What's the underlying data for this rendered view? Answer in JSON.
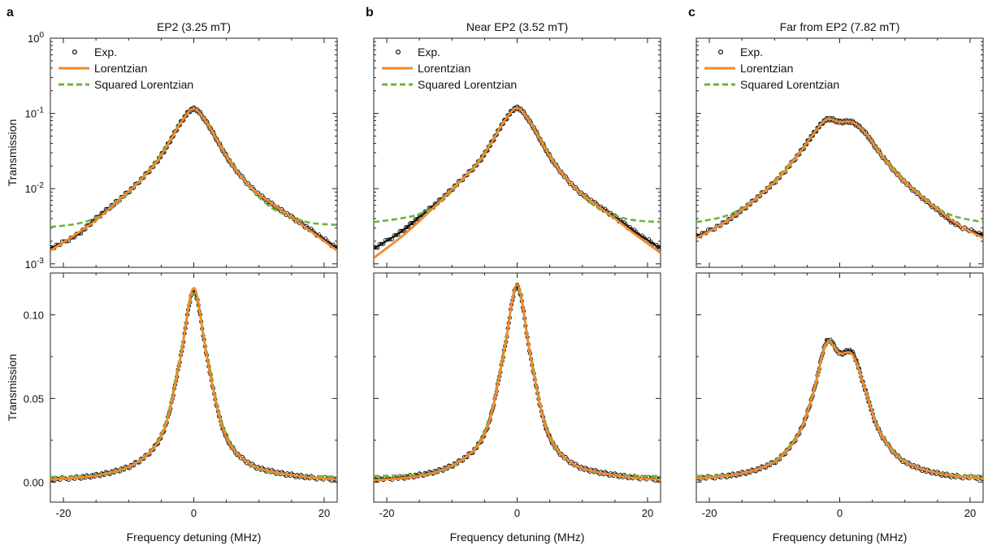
{
  "figure": {
    "colors": {
      "exp": "#111111",
      "lorentzian": "#f4892a",
      "squared": "#6db33f"
    },
    "legend": {
      "exp": "Exp.",
      "lorentzian": "Lorentzian",
      "squared": "Squared Lorentzian"
    }
  },
  "chart_data": [
    {
      "panel_label": "a",
      "title": "EP2 (3.25 mT)",
      "type": "line",
      "yscale": "log",
      "ylabel": "Transmission",
      "xlim": [
        -22,
        22
      ],
      "ylim": [
        0.0009,
        1.0
      ],
      "yticks": [
        "10^0",
        "10^-1",
        "10^-2",
        "10^-3"
      ],
      "legend_position": "top-left",
      "series": [
        {
          "name": "Exp.",
          "style": "scatter",
          "x": [
            -22,
            -18,
            -15,
            -12,
            -9,
            -6,
            -4,
            -2,
            0,
            2,
            4,
            6,
            9,
            12,
            15,
            18,
            22
          ],
          "y": [
            0.0016,
            0.0024,
            0.004,
            0.0065,
            0.011,
            0.021,
            0.038,
            0.075,
            0.115,
            0.075,
            0.038,
            0.02,
            0.01,
            0.0062,
            0.0042,
            0.0028,
            0.0016
          ]
        },
        {
          "name": "Lorentzian",
          "style": "solid",
          "x": [
            -22,
            -18,
            -15,
            -12,
            -9,
            -6,
            -4,
            -2,
            0,
            2,
            4,
            6,
            9,
            12,
            15,
            18,
            22
          ],
          "y": [
            0.0015,
            0.0025,
            0.0038,
            0.0065,
            0.011,
            0.021,
            0.038,
            0.075,
            0.115,
            0.075,
            0.038,
            0.02,
            0.01,
            0.0063,
            0.0042,
            0.0027,
            0.0015
          ]
        },
        {
          "name": "Squared Lorentzian",
          "style": "dashed",
          "x": [
            -22,
            -18,
            -15,
            -12,
            -9,
            -6,
            -4,
            -2,
            0,
            2,
            4,
            6,
            9,
            12,
            15,
            18,
            22
          ],
          "y": [
            0.0031,
            0.0034,
            0.0041,
            0.006,
            0.011,
            0.022,
            0.04,
            0.077,
            0.113,
            0.077,
            0.04,
            0.021,
            0.0095,
            0.0055,
            0.0042,
            0.0035,
            0.0033
          ]
        }
      ]
    },
    {
      "panel_label": "b",
      "title": "Near EP2 (3.52 mT)",
      "type": "line",
      "yscale": "log",
      "ylabel": "",
      "xlim": [
        -22,
        22
      ],
      "ylim": [
        0.0009,
        1.0
      ],
      "legend_position": "top-left",
      "series": [
        {
          "name": "Exp.",
          "style": "scatter",
          "x": [
            -22,
            -18,
            -15,
            -12,
            -9,
            -6,
            -4,
            -2,
            0,
            2,
            4,
            6,
            9,
            12,
            15,
            18,
            22
          ],
          "y": [
            0.0016,
            0.0026,
            0.0042,
            0.0068,
            0.012,
            0.022,
            0.04,
            0.078,
            0.118,
            0.076,
            0.038,
            0.02,
            0.01,
            0.0063,
            0.0042,
            0.0027,
            0.0016
          ]
        },
        {
          "name": "Lorentzian",
          "style": "solid",
          "x": [
            -22,
            -18,
            -15,
            -12,
            -9,
            -6,
            -4,
            -2,
            0,
            2,
            4,
            6,
            9,
            12,
            15,
            18,
            22
          ],
          "y": [
            0.0012,
            0.0022,
            0.0037,
            0.0066,
            0.012,
            0.022,
            0.04,
            0.078,
            0.118,
            0.076,
            0.038,
            0.02,
            0.01,
            0.0062,
            0.004,
            0.0025,
            0.0014
          ]
        },
        {
          "name": "Squared Lorentzian",
          "style": "dashed",
          "x": [
            -22,
            -18,
            -15,
            -12,
            -9,
            -6,
            -4,
            -2,
            0,
            2,
            4,
            6,
            9,
            12,
            15,
            18,
            22
          ],
          "y": [
            0.0036,
            0.004,
            0.0046,
            0.0063,
            0.0115,
            0.023,
            0.042,
            0.08,
            0.116,
            0.078,
            0.04,
            0.021,
            0.0098,
            0.0058,
            0.0044,
            0.0038,
            0.0036
          ]
        }
      ]
    },
    {
      "panel_label": "c",
      "title": "Far from EP2 (7.82 mT)",
      "type": "line",
      "yscale": "log",
      "ylabel": "",
      "xlim": [
        -22,
        22
      ],
      "ylim": [
        0.0009,
        1.0
      ],
      "legend_position": "top-left",
      "series": [
        {
          "name": "Exp.",
          "style": "scatter",
          "x": [
            -22,
            -18,
            -15,
            -12,
            -9,
            -6,
            -4,
            -2,
            0,
            2,
            4,
            6,
            9,
            12,
            15,
            18,
            22
          ],
          "y": [
            0.0023,
            0.0034,
            0.0052,
            0.0085,
            0.015,
            0.031,
            0.054,
            0.083,
            0.077,
            0.076,
            0.054,
            0.031,
            0.015,
            0.0085,
            0.0052,
            0.0033,
            0.0024
          ]
        },
        {
          "name": "Lorentzian",
          "style": "solid",
          "x": [
            -22,
            -18,
            -15,
            -12,
            -9,
            -6,
            -4,
            -2,
            0,
            2,
            4,
            6,
            9,
            12,
            15,
            18,
            22
          ],
          "y": [
            0.0022,
            0.0034,
            0.0052,
            0.0085,
            0.015,
            0.031,
            0.054,
            0.083,
            0.077,
            0.076,
            0.054,
            0.031,
            0.015,
            0.0086,
            0.0053,
            0.0034,
            0.0022
          ]
        },
        {
          "name": "Squared Lorentzian",
          "style": "dashed",
          "x": [
            -22,
            -18,
            -15,
            -12,
            -9,
            -6,
            -4,
            -2,
            0,
            2,
            4,
            6,
            9,
            12,
            15,
            18,
            22
          ],
          "y": [
            0.0036,
            0.0042,
            0.0055,
            0.0087,
            0.016,
            0.032,
            0.055,
            0.084,
            0.077,
            0.076,
            0.055,
            0.032,
            0.016,
            0.0088,
            0.0055,
            0.0042,
            0.0036
          ]
        }
      ]
    },
    {
      "panel_label": "",
      "title": "",
      "type": "line",
      "yscale": "linear",
      "ylabel": "Transmission",
      "xlabel": "Frequency detuning (MHz)",
      "xlim": [
        -22,
        22
      ],
      "ylim": [
        -0.012,
        0.125
      ],
      "xticks": [
        -20,
        0,
        20
      ],
      "yticks": [
        "0.00",
        "0.05",
        "0.10"
      ],
      "series": [
        {
          "name": "Exp.",
          "style": "scatter",
          "x": [
            -22,
            -18,
            -15,
            -12,
            -9,
            -6,
            -4,
            -2,
            0,
            2,
            4,
            6,
            9,
            12,
            15,
            18,
            22
          ],
          "y": [
            0.0015,
            0.0026,
            0.004,
            0.0065,
            0.011,
            0.021,
            0.038,
            0.075,
            0.114,
            0.075,
            0.038,
            0.02,
            0.01,
            0.0063,
            0.0042,
            0.0027,
            0.0015
          ]
        },
        {
          "name": "Lorentzian",
          "style": "solid",
          "x": [
            -22,
            -18,
            -15,
            -12,
            -9,
            -6,
            -4,
            -2,
            0,
            2,
            4,
            6,
            9,
            12,
            15,
            18,
            22
          ],
          "y": [
            0.0015,
            0.0025,
            0.0038,
            0.0065,
            0.011,
            0.021,
            0.038,
            0.075,
            0.116,
            0.075,
            0.038,
            0.02,
            0.01,
            0.0063,
            0.0042,
            0.0027,
            0.0015
          ]
        },
        {
          "name": "Squared Lorentzian",
          "style": "dashed",
          "x": [
            -22,
            -18,
            -15,
            -12,
            -9,
            -6,
            -4,
            -2,
            0,
            2,
            4,
            6,
            9,
            12,
            15,
            18,
            22
          ],
          "y": [
            0.0031,
            0.0034,
            0.0041,
            0.006,
            0.011,
            0.022,
            0.04,
            0.077,
            0.113,
            0.077,
            0.04,
            0.021,
            0.0095,
            0.0055,
            0.0042,
            0.0035,
            0.0033
          ]
        }
      ]
    },
    {
      "panel_label": "",
      "title": "",
      "type": "line",
      "yscale": "linear",
      "ylabel": "",
      "xlabel": "Frequency detuning (MHz)",
      "xlim": [
        -22,
        22
      ],
      "ylim": [
        -0.012,
        0.125
      ],
      "xticks": [
        -20,
        0,
        20
      ],
      "series": [
        {
          "name": "Exp.",
          "style": "scatter",
          "x": [
            -22,
            -18,
            -15,
            -12,
            -9,
            -6,
            -4,
            -2,
            0,
            2,
            4,
            6,
            9,
            12,
            15,
            18,
            22
          ],
          "y": [
            0.0016,
            0.0026,
            0.0042,
            0.0068,
            0.012,
            0.022,
            0.04,
            0.078,
            0.117,
            0.076,
            0.038,
            0.02,
            0.01,
            0.0063,
            0.0042,
            0.0027,
            0.0016
          ]
        },
        {
          "name": "Lorentzian",
          "style": "solid",
          "x": [
            -22,
            -18,
            -15,
            -12,
            -9,
            -6,
            -4,
            -2,
            0,
            2,
            4,
            6,
            9,
            12,
            15,
            18,
            22
          ],
          "y": [
            0.0012,
            0.0022,
            0.0037,
            0.0066,
            0.012,
            0.022,
            0.04,
            0.078,
            0.118,
            0.076,
            0.038,
            0.02,
            0.01,
            0.0062,
            0.004,
            0.0025,
            0.0014
          ]
        },
        {
          "name": "Squared Lorentzian",
          "style": "dashed",
          "x": [
            -22,
            -18,
            -15,
            -12,
            -9,
            -6,
            -4,
            -2,
            0,
            2,
            4,
            6,
            9,
            12,
            15,
            18,
            22
          ],
          "y": [
            0.0036,
            0.004,
            0.0046,
            0.0063,
            0.0115,
            0.023,
            0.042,
            0.08,
            0.116,
            0.078,
            0.04,
            0.021,
            0.0098,
            0.0058,
            0.0044,
            0.0038,
            0.0036
          ]
        }
      ]
    },
    {
      "panel_label": "",
      "title": "",
      "type": "line",
      "yscale": "linear",
      "ylabel": "",
      "xlabel": "Frequency detuning (MHz)",
      "xlim": [
        -22,
        22
      ],
      "ylim": [
        -0.012,
        0.125
      ],
      "xticks": [
        -20,
        0,
        20
      ],
      "series": [
        {
          "name": "Exp.",
          "style": "scatter",
          "x": [
            -22,
            -18,
            -15,
            -12,
            -9,
            -6,
            -4,
            -2,
            0,
            2,
            4,
            6,
            9,
            12,
            15,
            18,
            22
          ],
          "y": [
            0.0023,
            0.0034,
            0.0052,
            0.0085,
            0.015,
            0.031,
            0.054,
            0.084,
            0.077,
            0.077,
            0.054,
            0.031,
            0.015,
            0.0085,
            0.0052,
            0.0033,
            0.0024
          ]
        },
        {
          "name": "Lorentzian",
          "style": "solid",
          "x": [
            -22,
            -18,
            -15,
            -12,
            -9,
            -6,
            -4,
            -2,
            0,
            2,
            4,
            6,
            9,
            12,
            15,
            18,
            22
          ],
          "y": [
            0.0022,
            0.0034,
            0.0052,
            0.0085,
            0.015,
            0.031,
            0.054,
            0.083,
            0.077,
            0.076,
            0.054,
            0.031,
            0.015,
            0.0086,
            0.0053,
            0.0034,
            0.0022
          ]
        },
        {
          "name": "Squared Lorentzian",
          "style": "dashed",
          "x": [
            -22,
            -18,
            -15,
            -12,
            -9,
            -6,
            -4,
            -2,
            0,
            2,
            4,
            6,
            9,
            12,
            15,
            18,
            22
          ],
          "y": [
            0.0036,
            0.0042,
            0.0055,
            0.0087,
            0.016,
            0.032,
            0.055,
            0.084,
            0.077,
            0.076,
            0.055,
            0.032,
            0.016,
            0.0088,
            0.0055,
            0.0042,
            0.0036
          ]
        }
      ]
    }
  ]
}
